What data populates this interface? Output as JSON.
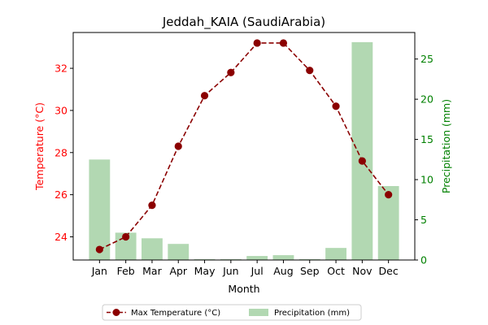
{
  "chart_data": {
    "type": "bar+line",
    "title": "Jeddah_KAIA (SaudiArabia)",
    "xlabel": "Month",
    "ylabel_left": "Temperature (°C)",
    "ylabel_right": "Precipitation (mm)",
    "categories": [
      "Jan",
      "Feb",
      "Mar",
      "Apr",
      "May",
      "Jun",
      "Jul",
      "Aug",
      "Sep",
      "Oct",
      "Nov",
      "Dec"
    ],
    "ylim_left": [
      22.9,
      33.7
    ],
    "yticks_left": [
      24,
      26,
      28,
      30,
      32
    ],
    "ylim_right": [
      0,
      28.3
    ],
    "yticks_right": [
      0,
      5,
      10,
      15,
      20,
      25
    ],
    "series": [
      {
        "name": "Max Temperature (°C)",
        "type": "line",
        "axis": "left",
        "color": "#8b0000",
        "values": [
          23.4,
          24.0,
          25.5,
          28.3,
          30.7,
          31.8,
          33.2,
          33.2,
          31.9,
          30.2,
          27.6,
          26.0
        ]
      },
      {
        "name": "Precipitation (mm)",
        "type": "bar",
        "axis": "right",
        "color": "#b2d8b2",
        "values": [
          12.5,
          3.4,
          2.7,
          2.0,
          0.1,
          0.1,
          0.5,
          0.6,
          0.1,
          1.5,
          27.1,
          9.2
        ]
      }
    ],
    "legend_position": "bottom-center",
    "grid": false,
    "colors": {
      "left_axis": "#ff0000",
      "right_axis": "#008000"
    }
  }
}
